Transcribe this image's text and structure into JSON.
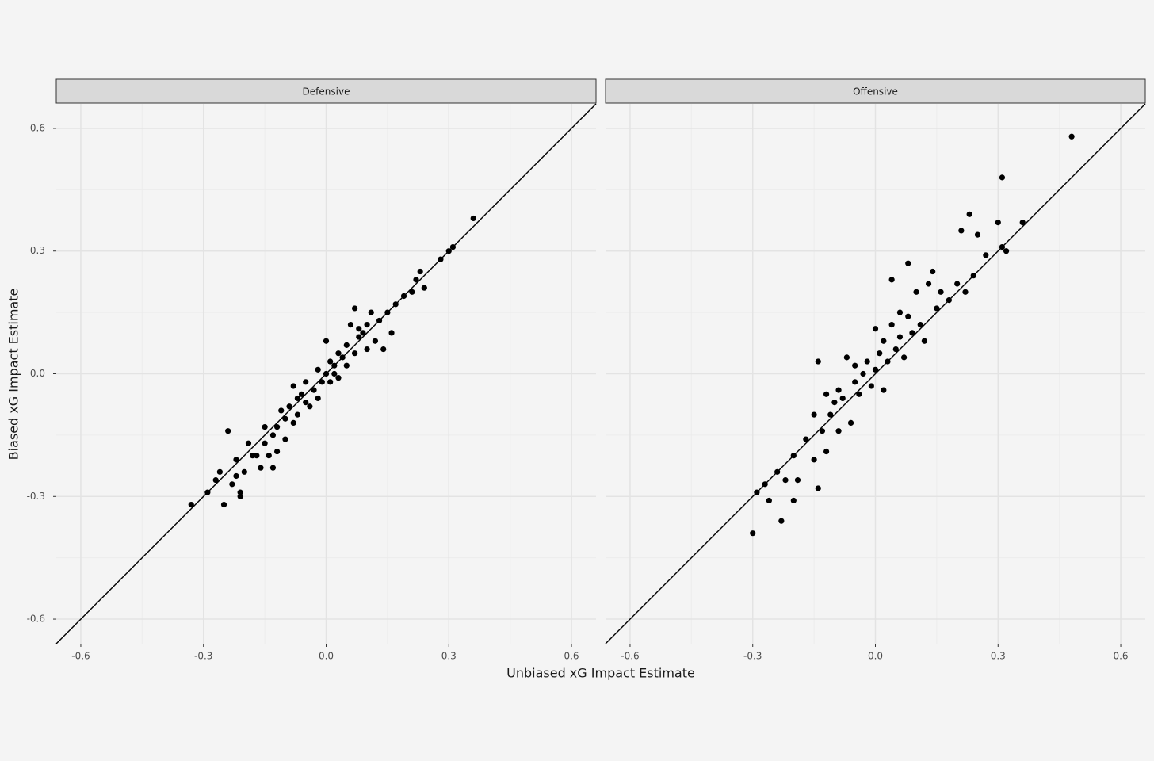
{
  "chart_data": [
    {
      "type": "scatter",
      "title": "Defensive",
      "xlabel": "Unbiased xG Impact Estimate",
      "ylabel": "Biased xG Impact Estimate",
      "color": "#000000",
      "grid": true,
      "identity_line": true,
      "xlim": [
        -0.66,
        0.66
      ],
      "ylim": [
        -0.66,
        0.66
      ],
      "xticks": [
        -0.6,
        -0.3,
        {
          "value": 0,
          "label": "0.0"
        },
        0.3,
        0.6
      ],
      "yticks": [
        -0.6,
        -0.3,
        {
          "value": 0,
          "label": "0.0"
        },
        0.3,
        0.6
      ],
      "x": [
        -0.33,
        -0.29,
        -0.27,
        -0.26,
        -0.25,
        -0.24,
        -0.23,
        -0.22,
        -0.21,
        -0.21,
        -0.22,
        -0.2,
        -0.19,
        -0.18,
        -0.17,
        -0.16,
        -0.15,
        -0.14,
        -0.13,
        -0.13,
        -0.12,
        -0.12,
        -0.11,
        -0.1,
        -0.1,
        -0.09,
        -0.08,
        -0.08,
        -0.07,
        -0.06,
        -0.05,
        -0.05,
        -0.04,
        -0.03,
        -0.02,
        -0.02,
        -0.01,
        0,
        0.01,
        0.01,
        0.02,
        0.03,
        0.03,
        0.04,
        0.05,
        0.05,
        0.06,
        0.07,
        0.07,
        0.08,
        0.09,
        0.1,
        0.1,
        0.11,
        0.12,
        0.13,
        0.14,
        0.15,
        0.16,
        0.17,
        0.19,
        0.21,
        0.22,
        0.23,
        0.24,
        0.28,
        0.3,
        0.31,
        0.36,
        0.0,
        -0.15,
        -0.07,
        0.02,
        0.08
      ],
      "values": [
        -0.32,
        -0.29,
        -0.26,
        -0.24,
        -0.32,
        -0.14,
        -0.27,
        -0.25,
        -0.29,
        -0.3,
        -0.21,
        -0.24,
        -0.17,
        -0.2,
        -0.2,
        -0.23,
        -0.17,
        -0.2,
        -0.23,
        -0.15,
        -0.13,
        -0.19,
        -0.09,
        -0.16,
        -0.11,
        -0.08,
        -0.03,
        -0.12,
        -0.1,
        -0.05,
        -0.07,
        -0.02,
        -0.08,
        -0.04,
        0.01,
        -0.06,
        -0.02,
        0.0,
        0.03,
        -0.02,
        0.02,
        0.05,
        -0.01,
        0.04,
        0.07,
        0.02,
        0.12,
        0.05,
        0.16,
        0.09,
        0.1,
        0.06,
        0.12,
        0.15,
        0.08,
        0.13,
        0.06,
        0.15,
        0.1,
        0.17,
        0.19,
        0.2,
        0.23,
        0.25,
        0.21,
        0.28,
        0.3,
        0.31,
        0.38,
        0.08,
        -0.13,
        -0.06,
        0.0,
        0.11
      ]
    },
    {
      "type": "scatter",
      "title": "Offensive",
      "color": "#000000",
      "grid": true,
      "identity_line": true,
      "xlim": [
        -0.66,
        0.66
      ],
      "ylim": [
        -0.66,
        0.66
      ],
      "xticks": [
        -0.6,
        -0.3,
        {
          "value": 0,
          "label": "0.0"
        },
        0.3,
        0.6
      ],
      "yticks": [
        -0.6,
        -0.3,
        0,
        0.3,
        0.6
      ],
      "x": [
        -0.3,
        -0.29,
        -0.27,
        -0.26,
        -0.23,
        -0.24,
        -0.22,
        -0.2,
        -0.2,
        -0.19,
        -0.17,
        -0.15,
        -0.15,
        -0.14,
        -0.14,
        -0.13,
        -0.12,
        -0.12,
        -0.11,
        -0.1,
        -0.09,
        -0.09,
        -0.08,
        -0.07,
        -0.06,
        -0.05,
        -0.05,
        -0.04,
        -0.03,
        -0.02,
        -0.01,
        0,
        0.0,
        0.01,
        0.02,
        0.02,
        0.03,
        0.04,
        0.04,
        0.05,
        0.06,
        0.06,
        0.07,
        0.08,
        0.08,
        0.09,
        0.1,
        0.11,
        0.12,
        0.13,
        0.14,
        0.15,
        0.16,
        0.18,
        0.2,
        0.21,
        0.22,
        0.23,
        0.24,
        0.25,
        0.27,
        0.3,
        0.31,
        0.31,
        0.32,
        0.36,
        0.48
      ],
      "values": [
        -0.39,
        -0.29,
        -0.27,
        -0.31,
        -0.36,
        -0.24,
        -0.26,
        -0.31,
        -0.2,
        -0.26,
        -0.16,
        -0.1,
        -0.21,
        0.03,
        -0.28,
        -0.14,
        -0.05,
        -0.19,
        -0.1,
        -0.07,
        -0.04,
        -0.14,
        -0.06,
        0.04,
        -0.12,
        -0.02,
        0.02,
        -0.05,
        0.0,
        0.03,
        -0.03,
        0.01,
        0.11,
        0.05,
        -0.04,
        0.08,
        0.03,
        0.12,
        0.23,
        0.06,
        0.09,
        0.15,
        0.04,
        0.27,
        0.14,
        0.1,
        0.2,
        0.12,
        0.08,
        0.22,
        0.25,
        0.16,
        0.2,
        0.18,
        0.22,
        0.35,
        0.2,
        0.39,
        0.24,
        0.34,
        0.29,
        0.37,
        0.48,
        0.31,
        0.3,
        0.37,
        0.58
      ]
    }
  ]
}
